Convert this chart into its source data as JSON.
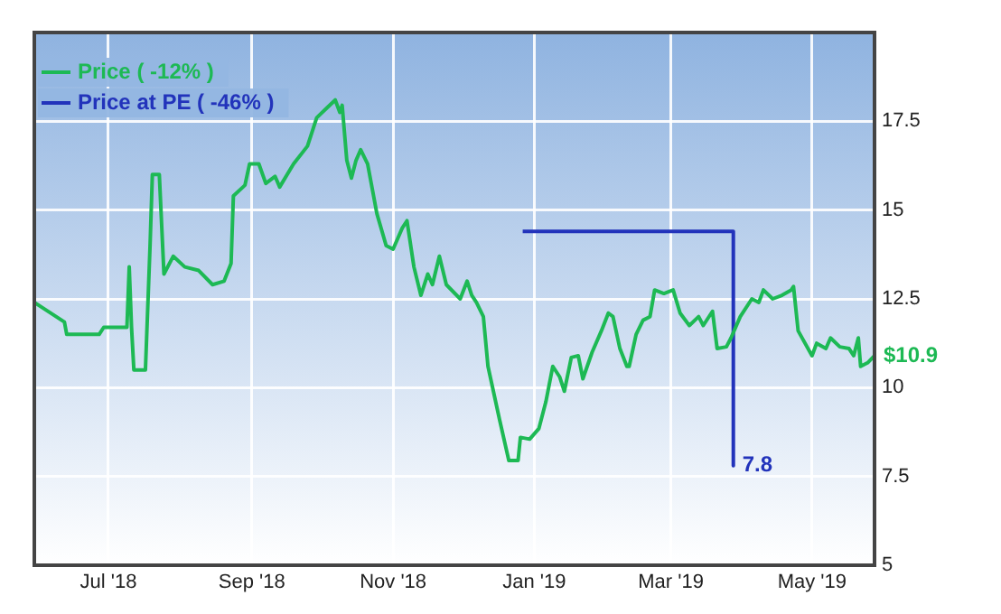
{
  "chart_data": {
    "type": "line",
    "xlim": [
      "2018-05-30",
      "2019-05-28"
    ],
    "xticks": [
      {
        "value": "2018-07-01",
        "label": "Jul '18"
      },
      {
        "value": "2018-09-01",
        "label": "Sep '18"
      },
      {
        "value": "2018-11-01",
        "label": "Nov '18"
      },
      {
        "value": "2019-01-01",
        "label": "Jan '19"
      },
      {
        "value": "2019-03-01",
        "label": "Mar '19"
      },
      {
        "value": "2019-05-01",
        "label": "May '19"
      }
    ],
    "ylim": [
      5,
      20
    ],
    "yticks": [
      5,
      7.5,
      10,
      12.5,
      15,
      17.5
    ],
    "grid": true,
    "legend": "top left",
    "marker": "none",
    "line_style": "solid",
    "series": [
      {
        "name": "Price ( -12% )",
        "color": "#1db954",
        "x": [
          "2018-05-30",
          "2018-06-12",
          "2018-06-13",
          "2018-06-27",
          "2018-06-29",
          "2018-07-09",
          "2018-07-10",
          "2018-07-11",
          "2018-07-12",
          "2018-07-17",
          "2018-07-19",
          "2018-07-20",
          "2018-07-23",
          "2018-07-25",
          "2018-07-29",
          "2018-08-03",
          "2018-08-09",
          "2018-08-15",
          "2018-08-20",
          "2018-08-23",
          "2018-08-24",
          "2018-08-29",
          "2018-08-31",
          "2018-09-04",
          "2018-09-07",
          "2018-09-11",
          "2018-09-13",
          "2018-09-19",
          "2018-09-25",
          "2018-09-29",
          "2018-10-03",
          "2018-10-07",
          "2018-10-09",
          "2018-10-10",
          "2018-10-12",
          "2018-10-14",
          "2018-10-16",
          "2018-10-18",
          "2018-10-21",
          "2018-10-25",
          "2018-10-29",
          "2018-11-01",
          "2018-11-05",
          "2018-11-07",
          "2018-11-10",
          "2018-11-13",
          "2018-11-16",
          "2018-11-18",
          "2018-11-21",
          "2018-11-24",
          "2018-11-30",
          "2018-12-03",
          "2018-12-05",
          "2018-12-07",
          "2018-12-10",
          "2018-12-12",
          "2018-12-17",
          "2018-12-21",
          "2018-12-25",
          "2018-12-26",
          "2018-12-30",
          "2019-01-03",
          "2019-01-06",
          "2019-01-09",
          "2019-01-12",
          "2019-01-14",
          "2019-01-17",
          "2019-01-20",
          "2019-01-22",
          "2019-01-26",
          "2019-01-30",
          "2019-02-02",
          "2019-02-04",
          "2019-02-07",
          "2019-02-10",
          "2019-02-11",
          "2019-02-14",
          "2019-02-17",
          "2019-02-20",
          "2019-02-22",
          "2019-02-26",
          "2019-03-02",
          "2019-03-05",
          "2019-03-09",
          "2019-03-13",
          "2019-03-15",
          "2019-03-19",
          "2019-03-21",
          "2019-03-25",
          "2019-03-27",
          "2019-03-31",
          "2019-04-05",
          "2019-04-08",
          "2019-04-10",
          "2019-04-14",
          "2019-04-18",
          "2019-04-22",
          "2019-04-23",
          "2019-04-25",
          "2019-05-01",
          "2019-05-03",
          "2019-05-07",
          "2019-05-09",
          "2019-05-13",
          "2019-05-17",
          "2019-05-19",
          "2019-05-21",
          "2019-05-22",
          "2019-05-25",
          "2019-05-28"
        ],
        "values": [
          12.4,
          11.85,
          11.5,
          11.5,
          11.7,
          11.7,
          13.4,
          11.7,
          10.5,
          10.5,
          14.0,
          16.0,
          16.0,
          13.2,
          13.7,
          13.4,
          13.3,
          12.9,
          13.0,
          13.5,
          15.4,
          15.7,
          16.3,
          16.3,
          15.75,
          15.95,
          15.65,
          16.3,
          16.8,
          17.6,
          17.85,
          18.1,
          17.75,
          17.95,
          16.4,
          15.9,
          16.4,
          16.7,
          16.3,
          14.9,
          14.0,
          13.9,
          14.5,
          14.7,
          13.4,
          12.6,
          13.2,
          12.9,
          13.7,
          12.9,
          12.5,
          13.0,
          12.6,
          12.4,
          12.0,
          10.6,
          9.1,
          7.95,
          7.95,
          8.6,
          8.55,
          8.85,
          9.6,
          10.6,
          10.3,
          9.9,
          10.85,
          10.9,
          10.25,
          11.0,
          11.6,
          12.1,
          12.0,
          11.1,
          10.6,
          10.6,
          11.5,
          11.9,
          12.0,
          12.75,
          12.65,
          12.75,
          12.1,
          11.75,
          12.0,
          11.75,
          12.15,
          11.1,
          11.15,
          11.4,
          12.0,
          12.5,
          12.4,
          12.75,
          12.5,
          12.6,
          12.75,
          12.85,
          11.6,
          10.9,
          11.25,
          11.1,
          11.4,
          11.15,
          11.1,
          10.9,
          11.4,
          10.6,
          10.7,
          10.9
        ],
        "value_labels": [
          null,
          null,
          null,
          null,
          null,
          null,
          null,
          null,
          null,
          null,
          null,
          null,
          null,
          null,
          null,
          null,
          null,
          null,
          null,
          null,
          null,
          null,
          null,
          null,
          null,
          null,
          null,
          null,
          null,
          null,
          null,
          null,
          null,
          null,
          null,
          null,
          null,
          null,
          null,
          null,
          null,
          null,
          null,
          null,
          null,
          null,
          null,
          null,
          null,
          null,
          null,
          null,
          null,
          null,
          null,
          null,
          null,
          null,
          null,
          null,
          null,
          null,
          null,
          null,
          null,
          null,
          null,
          null,
          null,
          null,
          null,
          null,
          null,
          null,
          null,
          null,
          null,
          null,
          null,
          null,
          null,
          null,
          null,
          null,
          null,
          null,
          null,
          null,
          null,
          null,
          null,
          null,
          null,
          null,
          null,
          null,
          null,
          null,
          null,
          null,
          null,
          null,
          null,
          null,
          null,
          null,
          null,
          null,
          null,
          "$10.9"
        ]
      },
      {
        "name": "Price at PE ( -46% )",
        "color": "#2233bb",
        "x": [
          "2018-12-27",
          "2019-03-28",
          "2019-03-28"
        ],
        "values": [
          14.4,
          14.4,
          7.8
        ],
        "value_labels": [
          null,
          null,
          "7.8"
        ]
      }
    ]
  }
}
